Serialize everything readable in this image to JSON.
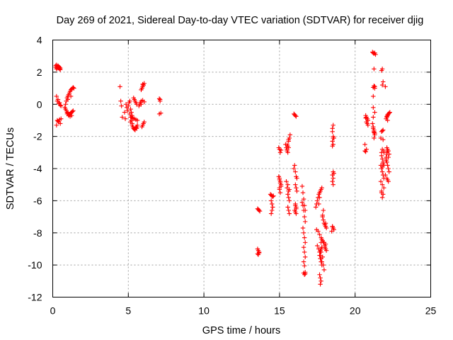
{
  "chart_data": {
    "type": "scatter",
    "title": "Day 269 of 2021, Sidereal Day-to-day VTEC variation (SDTVAR) for receiver djig",
    "xlabel": "GPS time / hours",
    "ylabel": "SDTVAR / TECUs",
    "xlim": [
      0,
      25
    ],
    "ylim": [
      -12,
      4
    ],
    "xticks": [
      0,
      5,
      10,
      15,
      20,
      25
    ],
    "yticks": [
      -12,
      -10,
      -8,
      -6,
      -4,
      -2,
      0,
      2,
      4
    ],
    "grid": true,
    "marker": "+",
    "color": "#ff0000",
    "series": [
      {
        "name": "SDTVAR",
        "x": [
          0.2,
          0.25,
          0.3,
          0.35,
          0.4,
          0.45,
          0.5,
          0.2,
          0.25,
          0.3,
          0.35,
          0.4,
          0.45,
          0.5,
          0.25,
          0.35,
          0.45,
          0.3,
          0.4,
          0.5,
          0.55,
          0.3,
          0.4,
          0.5,
          0.25,
          0.35,
          0.45,
          0.55,
          0.8,
          0.85,
          0.9,
          0.95,
          1.0,
          1.05,
          1.1,
          1.15,
          1.2,
          1.25,
          1.3,
          1.35,
          1.4,
          0.85,
          0.9,
          0.95,
          1.0,
          1.05,
          1.1,
          1.15,
          1.2,
          1.25,
          1.3,
          1.35,
          0.95,
          1.05,
          1.15,
          1.25,
          1.0,
          1.2,
          4.45,
          4.5,
          4.55,
          4.6,
          4.75,
          4.8,
          4.85,
          4.9,
          4.95,
          5.0,
          5.05,
          5.1,
          5.15,
          5.2,
          5.25,
          5.3,
          5.35,
          5.4,
          5.45,
          5.5,
          5.55,
          5.1,
          5.15,
          5.2,
          5.25,
          5.3,
          5.35,
          5.4,
          5.45,
          5.5,
          5.55,
          5.6,
          5.15,
          5.25,
          5.35,
          5.45,
          5.55,
          5.2,
          5.3,
          5.4,
          5.5,
          5.6,
          5.7,
          5.75,
          5.8,
          5.85,
          5.9,
          5.95,
          6.0,
          6.05,
          5.85,
          5.9,
          5.95,
          6.0,
          6.05,
          5.95,
          6.0,
          5.85,
          5.95,
          6.05,
          7.05,
          7.1,
          7.1,
          7.05,
          7.15,
          13.55,
          13.6,
          13.65,
          13.7,
          13.55,
          13.6,
          13.65,
          13.55,
          13.6,
          13.65,
          14.4,
          14.45,
          14.5,
          14.55,
          14.6,
          14.45,
          14.5,
          14.55,
          14.5,
          14.45,
          14.95,
          15.0,
          15.05,
          15.1,
          15.0,
          15.05,
          14.95,
          15.0,
          15.1,
          15.05,
          15.0,
          15.1,
          15.05,
          15.0,
          15.4,
          15.45,
          15.5,
          15.55,
          15.6,
          15.65,
          15.7,
          15.5,
          15.55,
          15.6,
          15.5,
          15.6,
          15.45,
          15.55,
          15.5,
          15.6,
          15.65,
          15.55,
          15.6,
          15.65,
          15.55,
          15.6,
          15.65,
          15.95,
          16.0,
          16.05,
          16.1,
          15.95,
          16.05,
          16.0,
          16.1,
          16.15,
          16.05,
          16.1,
          16.15,
          16.05,
          16.1,
          16.0,
          16.05,
          16.1,
          16.05,
          16.1,
          16.5,
          16.55,
          16.6,
          16.65,
          16.7,
          16.5,
          16.55,
          16.6,
          16.65,
          16.7,
          16.55,
          16.6,
          16.65,
          16.7,
          16.6,
          16.65,
          16.7,
          16.6,
          16.65,
          16.7,
          16.65,
          16.6,
          16.7,
          17.4,
          17.45,
          17.5,
          17.55,
          17.6,
          17.65,
          17.7,
          17.75,
          17.8,
          17.85,
          17.9,
          17.95,
          18.0,
          18.05,
          18.1,
          17.45,
          17.55,
          17.65,
          17.75,
          17.85,
          17.95,
          18.05,
          17.5,
          17.6,
          17.7,
          17.8,
          17.9,
          18.0,
          17.6,
          17.65,
          17.7,
          17.75,
          17.8,
          17.85,
          17.9,
          17.95,
          17.65,
          17.7,
          17.75,
          17.7,
          17.75,
          17.8,
          17.75,
          17.65,
          17.7,
          17.75,
          17.8,
          17.85,
          17.9,
          17.6,
          17.65,
          17.7,
          17.75,
          18.0,
          18.05,
          18.1,
          18.05,
          18.0,
          18.5,
          18.55,
          18.6,
          18.45,
          18.5,
          18.55,
          18.6,
          18.5,
          18.55,
          18.5,
          18.55,
          18.6,
          18.5,
          18.55,
          18.5,
          18.55,
          18.5,
          18.55,
          18.5,
          18.55,
          20.65,
          20.7,
          20.75,
          20.8,
          20.85,
          20.7,
          20.75,
          20.8,
          20.85,
          20.75,
          20.65,
          20.7,
          21.15,
          21.2,
          21.25,
          21.3,
          21.35,
          21.15,
          21.2,
          21.25,
          21.3,
          21.2,
          21.25,
          21.3,
          21.25,
          21.2,
          21.3,
          21.2,
          21.3,
          21.25,
          21.25,
          21.2,
          21.3,
          21.2,
          21.25,
          21.75,
          21.8,
          21.85,
          21.9,
          21.75,
          21.8,
          21.85,
          21.9,
          21.75,
          21.8,
          21.85,
          21.9,
          21.7,
          21.8,
          21.9,
          21.75,
          21.85,
          21.8,
          21.75,
          21.85,
          21.8,
          21.7,
          21.8,
          21.9,
          21.75,
          21.85,
          21.7,
          21.8,
          21.75,
          21.85,
          21.8,
          22.0,
          22.05,
          22.1,
          22.15,
          22.2,
          22.25,
          22.0,
          22.1,
          22.2,
          22.05,
          22.15,
          22.25,
          22.05,
          22.1,
          22.15,
          22.2,
          22.1,
          22.15,
          22.2,
          22.1,
          22.15,
          22.05,
          22.1,
          22.1,
          22.15,
          22.15,
          22.2,
          22.25,
          22.3
        ],
        "y": [
          2.4,
          2.45,
          2.35,
          2.3,
          2.25,
          2.2,
          2.15,
          2.3,
          2.2,
          2.25,
          2.4,
          2.35,
          2.3,
          2.25,
          0.5,
          0.3,
          0.1,
          0.2,
          0.05,
          -0.05,
          -0.1,
          -1.0,
          -1.1,
          -1.2,
          -1.3,
          -1.05,
          -0.95,
          -0.9,
          -0.2,
          0.0,
          0.2,
          0.4,
          0.5,
          0.6,
          0.7,
          0.8,
          0.9,
          0.95,
          1.0,
          1.05,
          1.0,
          -0.3,
          -0.4,
          -0.5,
          -0.55,
          -0.6,
          -0.65,
          -0.6,
          -0.55,
          -0.5,
          -0.45,
          -0.4,
          -0.6,
          -0.7,
          -0.75,
          -0.7,
          0.3,
          0.5,
          1.1,
          0.2,
          -0.1,
          -0.8,
          -0.5,
          -0.9,
          0.0,
          -0.2,
          -0.4,
          -0.1,
          0.1,
          0.2,
          -0.3,
          -0.5,
          -0.7,
          -0.9,
          0.4,
          0.3,
          0.2,
          0.1,
          0.0,
          -0.6,
          -0.8,
          -1.0,
          -1.2,
          -1.4,
          -1.5,
          -1.55,
          -1.5,
          -1.45,
          -1.4,
          -1.3,
          -1.1,
          -1.3,
          -1.5,
          -1.6,
          -1.5,
          -0.8,
          -0.85,
          -0.9,
          -0.95,
          -1.0,
          -0.1,
          0.0,
          0.1,
          0.0,
          -1.4,
          -1.3,
          -1.2,
          -1.1,
          0.9,
          1.0,
          1.1,
          1.2,
          1.3,
          1.25,
          1.2,
          0.2,
          0.25,
          0.15,
          0.35,
          0.3,
          0.2,
          -0.6,
          -0.55,
          -6.5,
          -6.55,
          -6.6,
          -6.65,
          -9.0,
          -9.1,
          -9.2,
          -9.3,
          -9.35,
          -9.25,
          -5.6,
          -5.65,
          -5.7,
          -5.75,
          -5.7,
          -6.0,
          -6.2,
          -6.4,
          -6.6,
          -6.8,
          -4.5,
          -4.7,
          -4.9,
          -5.1,
          -5.3,
          -5.5,
          -2.7,
          -2.8,
          -2.85,
          -3.0,
          -5.2,
          -5.0,
          -4.8,
          -4.6,
          -2.5,
          -2.7,
          -2.9,
          -2.6,
          -2.3,
          -2.1,
          -1.9,
          -2.8,
          -3.0,
          -2.7,
          -2.5,
          -2.2,
          -4.8,
          -5.0,
          -5.2,
          -5.4,
          -5.3,
          -5.6,
          -5.8,
          -6.0,
          -6.4,
          -6.6,
          -6.8,
          -0.6,
          -0.65,
          -0.7,
          -0.75,
          -4.0,
          -4.2,
          -3.8,
          -4.5,
          -4.6,
          -5.0,
          -5.2,
          -5.4,
          -6.3,
          -6.5,
          -6.6,
          -6.7,
          -6.8,
          -6.2,
          -6.4,
          -5.1,
          -5.5,
          -5.9,
          -6.3,
          -6.6,
          -6.1,
          -6.3,
          -6.6,
          -7.0,
          -7.3,
          -7.7,
          -8.0,
          -8.3,
          -8.6,
          -8.9,
          -9.2,
          -9.5,
          -9.8,
          -10.05,
          -10.55,
          -10.6,
          -10.5,
          -10.45,
          -6.4,
          -6.2,
          -6.0,
          -5.8,
          -5.6,
          -5.5,
          -5.4,
          -5.3,
          -5.2,
          -6.9,
          -7.2,
          -7.4,
          -7.5,
          -7.6,
          -7.7,
          -7.8,
          -7.9,
          -8.1,
          -8.3,
          -8.5,
          -8.6,
          -8.7,
          -8.8,
          -9.0,
          -9.2,
          -8.4,
          -8.6,
          -8.8,
          -9.0,
          -9.2,
          -9.4,
          -9.6,
          -9.8,
          -9.5,
          -10.0,
          -10.3,
          -10.6,
          -10.8,
          -11.0,
          -11.2,
          -8.6,
          -8.9,
          -9.2,
          -9.4,
          -9.6,
          -9.8,
          -10.0,
          -7.0,
          -6.6,
          -6.2,
          -5.8,
          -9.1,
          -9.0,
          -8.9,
          -9.0,
          -9.1,
          -7.4,
          -7.5,
          -7.6,
          -7.7,
          -7.8,
          -7.9,
          -7.6,
          -2.0,
          -2.1,
          -2.3,
          -2.5,
          -2.6,
          -4.2,
          -4.3,
          -4.4,
          -4.6,
          -4.8,
          -5.0,
          -1.5,
          -1.3,
          -1.7,
          -2.1,
          -2.5,
          -0.7,
          -0.8,
          -0.9,
          -1.0,
          -0.85,
          -1.1,
          -1.2,
          -1.3,
          -2.8,
          -2.9,
          -2.95,
          3.25,
          3.2,
          3.15,
          3.2,
          3.1,
          -1.2,
          -1.4,
          -1.6,
          -1.8,
          -1.5,
          -1.7,
          -1.9,
          -2.1,
          -0.8,
          1.0,
          1.05,
          1.1,
          1.15,
          2.2,
          0.5,
          -0.5,
          -0.2,
          -1.75,
          -1.7,
          -1.65,
          -1.6,
          -3.0,
          -3.2,
          -3.4,
          -3.6,
          -3.8,
          -4.0,
          -4.2,
          -4.4,
          -4.6,
          -4.8,
          -5.0,
          -5.2,
          -5.4,
          -5.6,
          -5.8,
          -5.5,
          -3.7,
          -3.9,
          -3.8,
          -2.8,
          -2.9,
          -3.0,
          -2.2,
          -2.1,
          2.2,
          2.1,
          1.4,
          1.2,
          1.1,
          -3.4,
          -3.6,
          -3.8,
          -4.0,
          -4.2,
          -4.4,
          -3.1,
          -3.3,
          -3.5,
          -2.9,
          -3.1,
          -3.3,
          -2.7,
          -2.8,
          -2.9,
          -3.0,
          -4.7,
          -4.8,
          -4.6,
          -1.0,
          -0.9,
          -0.8,
          -0.75,
          -0.7,
          -0.65,
          -0.6,
          -0.55,
          -0.5
        ]
      }
    ]
  }
}
